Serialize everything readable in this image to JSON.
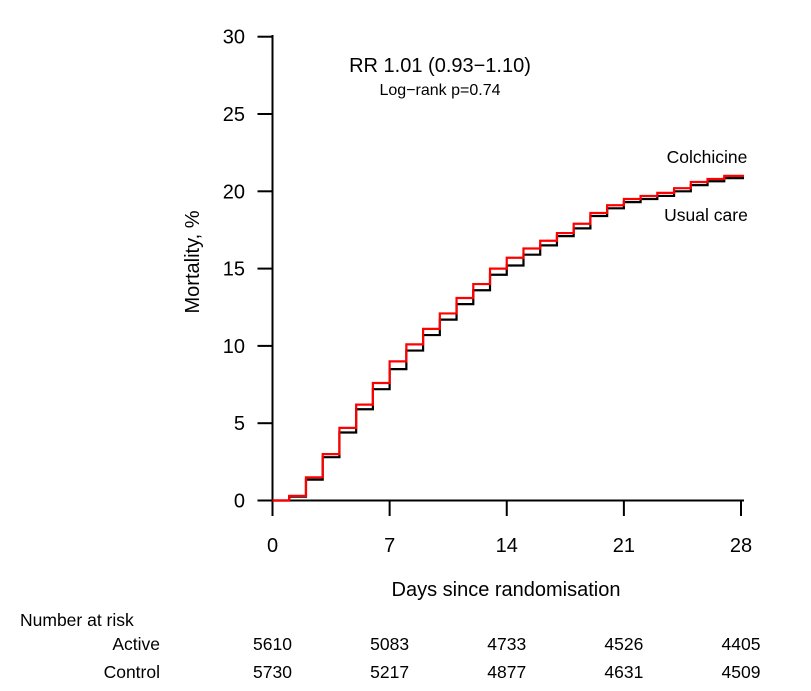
{
  "chart_data": {
    "type": "line",
    "subtype": "kaplan-meier-step",
    "xlabel": "Days since randomisation",
    "ylabel": "Mortality, %",
    "xlim": [
      0,
      28
    ],
    "ylim": [
      0,
      30
    ],
    "xticks": [
      0,
      7,
      14,
      21,
      28
    ],
    "yticks": [
      0,
      5,
      10,
      15,
      20,
      25,
      30
    ],
    "grid": "off",
    "annotations": [
      {
        "text": "RR 1.01 (0.93−1.10)"
      },
      {
        "text": "Log−rank p=0.74"
      }
    ],
    "days": [
      0,
      1,
      2,
      3,
      4,
      5,
      6,
      7,
      8,
      9,
      10,
      11,
      12,
      13,
      14,
      15,
      16,
      17,
      18,
      19,
      20,
      21,
      22,
      23,
      24,
      25,
      26,
      27,
      28
    ],
    "series": [
      {
        "name": "Colchicine",
        "color": "#ff0000",
        "values": [
          0,
          0.3,
          1.5,
          3.0,
          4.7,
          6.2,
          7.6,
          9.0,
          10.1,
          11.1,
          12.1,
          13.1,
          14.0,
          15.0,
          15.7,
          16.3,
          16.8,
          17.3,
          17.9,
          18.6,
          19.1,
          19.5,
          19.7,
          19.9,
          20.2,
          20.6,
          20.8,
          21.0,
          21.0
        ]
      },
      {
        "name": "Usual care",
        "color": "#000000",
        "values": [
          0,
          0.25,
          1.35,
          2.8,
          4.4,
          5.9,
          7.2,
          8.5,
          9.7,
          10.7,
          11.7,
          12.7,
          13.6,
          14.6,
          15.2,
          15.9,
          16.5,
          17.1,
          17.6,
          18.4,
          18.9,
          19.3,
          19.5,
          19.7,
          20.0,
          20.4,
          20.65,
          20.85,
          20.85
        ]
      }
    ],
    "risk_table": {
      "header": "Number at risk",
      "time_points": [
        0,
        7,
        14,
        21,
        28
      ],
      "rows": [
        {
          "label": "Active",
          "color": "#ff0000",
          "values": [
            "5610",
            "5083",
            "4733",
            "4526",
            "4405"
          ]
        },
        {
          "label": "Control",
          "color": "#000000",
          "values": [
            "5730",
            "5217",
            "4877",
            "4631",
            "4509"
          ]
        }
      ]
    }
  }
}
